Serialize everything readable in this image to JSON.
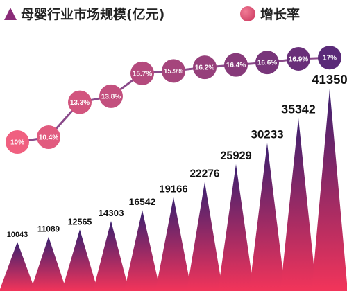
{
  "legend": {
    "size_label": "母婴行业市场规模(亿元)",
    "rate_label": "增长率",
    "size_icon": "triangle-icon",
    "rate_icon": "circle-icon"
  },
  "colors": {
    "triangle_top": "#3a2070",
    "triangle_bottom": "#f2345a",
    "circle_start": "#f06080",
    "circle_end": "#5a2a78",
    "line": "#8a4a8a"
  },
  "chart_data": {
    "type": "bar",
    "series": [
      {
        "name": "母婴行业市场规模(亿元)",
        "values": [
          10043,
          11089,
          12565,
          14303,
          16542,
          19166,
          22276,
          25929,
          30233,
          35342,
          41350
        ],
        "labels": [
          "10043",
          "11089",
          "12565",
          "14303",
          "16542",
          "19166",
          "22276",
          "25929",
          "30233",
          "35342",
          "41350"
        ]
      },
      {
        "name": "增长率",
        "type": "line",
        "values": [
          10,
          10.4,
          13.3,
          13.8,
          15.7,
          15.9,
          16.2,
          16.4,
          16.6,
          16.9,
          17
        ],
        "labels": [
          "10%",
          "10.4%",
          "13.3%",
          "13.8%",
          "15.7%",
          "15.9%",
          "16.2%",
          "16.4%",
          "16.6%",
          "16.9%",
          "17%"
        ]
      }
    ],
    "title": "",
    "xlabel": "",
    "ylabel": "",
    "grid": false,
    "legend_position": "top"
  }
}
